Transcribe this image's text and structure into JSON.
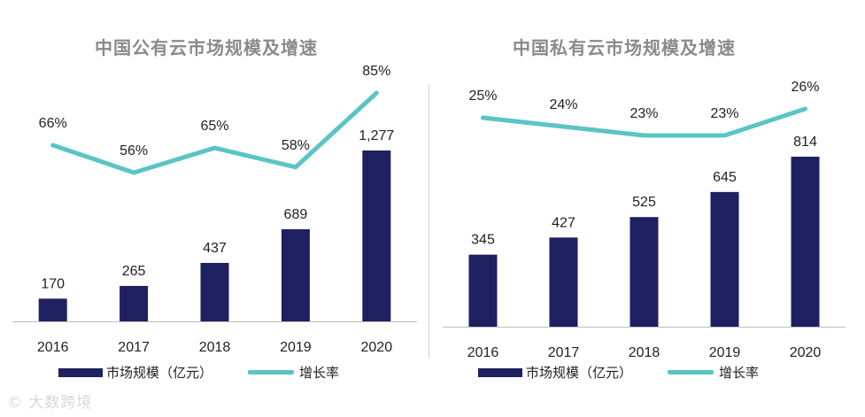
{
  "colors": {
    "bar": "#1f2060",
    "line": "#5bc4c4",
    "text": "#222222",
    "title": "#8a8a8a",
    "axis": "#bdbdbd"
  },
  "watermark": "© 大数跨境",
  "chart_data": [
    {
      "type": "bar",
      "title": "中国公有云市场规模及增速",
      "categories": [
        "2016",
        "2017",
        "2018",
        "2019",
        "2020"
      ],
      "series": [
        {
          "name": "市场规模（亿元）",
          "type": "bar",
          "values": [
            170,
            265,
            437,
            689,
            1277
          ],
          "labels": [
            "170",
            "265",
            "437",
            "689",
            "1,277"
          ]
        },
        {
          "name": "增长率",
          "type": "line",
          "values": [
            66,
            56,
            65,
            58,
            85
          ],
          "labels": [
            "66%",
            "56%",
            "65%",
            "58%",
            "85%"
          ]
        }
      ],
      "legend": [
        "市场规模（亿元）",
        "增长率"
      ],
      "legend_position": "bottom"
    },
    {
      "type": "bar",
      "title": "中国私有云市场规模及增速",
      "categories": [
        "2016",
        "2017",
        "2018",
        "2019",
        "2020"
      ],
      "series": [
        {
          "name": "市场规模（亿元）",
          "type": "bar",
          "values": [
            345,
            427,
            525,
            645,
            814
          ],
          "labels": [
            "345",
            "427",
            "525",
            "645",
            "814"
          ]
        },
        {
          "name": "增长率",
          "type": "line",
          "values": [
            25,
            24,
            23,
            23,
            26
          ],
          "labels": [
            "25%",
            "24%",
            "23%",
            "23%",
            "26%"
          ]
        }
      ],
      "legend": [
        "市场规模（亿元）",
        "增长率"
      ],
      "legend_position": "bottom"
    }
  ]
}
